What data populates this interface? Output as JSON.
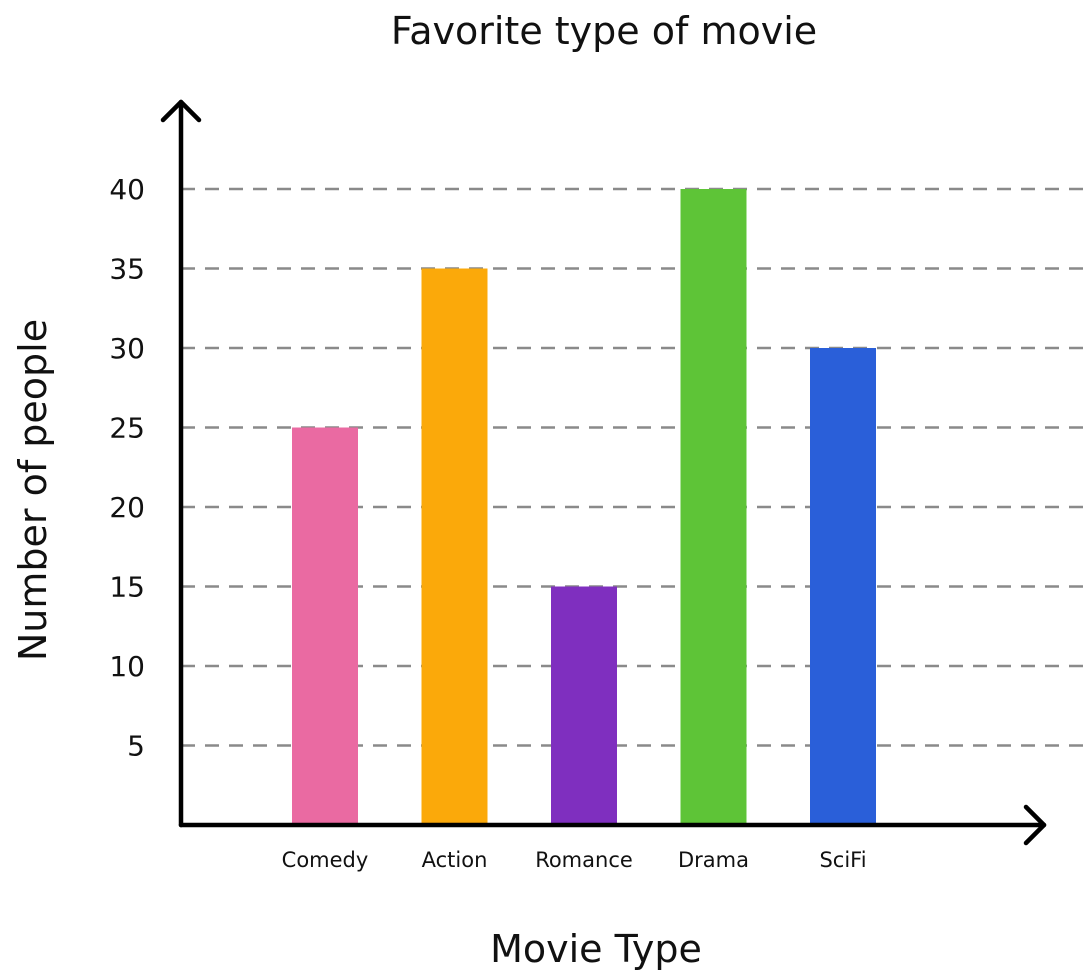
{
  "chart_data": {
    "type": "bar",
    "title": "Favorite type of movie",
    "xlabel": "Movie Type",
    "ylabel": "Number of people",
    "categories": [
      "Comedy",
      "Action",
      "Romance",
      "Drama",
      "SciFi"
    ],
    "values": [
      25,
      35,
      15,
      40,
      30
    ],
    "colors": [
      "#ea6aa2",
      "#fba90a",
      "#7f2fbf",
      "#5ec437",
      "#2a5fd9"
    ],
    "ylim": [
      0,
      45
    ],
    "yticks": [
      5,
      10,
      15,
      20,
      25,
      30,
      35,
      40
    ],
    "grid": true
  }
}
